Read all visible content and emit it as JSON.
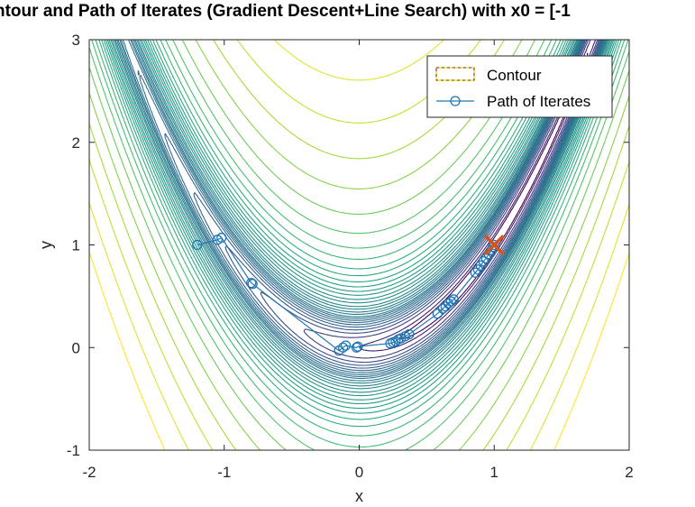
{
  "chart_data": {
    "type": "contour",
    "title": "ntour and Path of Iterates (Gradient Descent+Line Search) with x0 = [-1",
    "xlabel": "x",
    "ylabel": "y",
    "xlim": [
      -2,
      2
    ],
    "ylim": [
      -1,
      3
    ],
    "xticks": [
      "-2",
      "-1",
      "0",
      "1",
      "2"
    ],
    "yticks": [
      "-1",
      "0",
      "1",
      "2",
      "3"
    ],
    "function": "rosenbrock: (1-x)^2 + 100*(y-x^2)^2",
    "contour_levels": [
      0.5,
      1,
      2,
      3,
      4,
      5,
      6,
      7,
      8,
      9,
      10,
      11.5,
      13,
      15,
      17,
      20,
      23,
      27,
      31,
      36,
      42,
      50,
      60,
      75,
      95,
      125,
      170,
      240,
      340,
      480,
      680,
      950
    ],
    "colormap": [
      "#440154",
      "#46327e",
      "#365c8d",
      "#277f8e",
      "#1fa187",
      "#4ac16d",
      "#a0da39",
      "#fde725"
    ],
    "legend": {
      "position": "top-right",
      "entries": [
        {
          "label": "Contour",
          "color": "#e8e020"
        },
        {
          "label": "Path of Iterates",
          "color": "#1f77b4"
        }
      ]
    },
    "path": {
      "color": "#1f77b4",
      "x": [
        -1.2,
        -1.05,
        -1.02,
        -0.8,
        -0.79,
        -0.15,
        -0.12,
        -0.1,
        -0.02,
        -0.01,
        0.23,
        0.25,
        0.27,
        0.29,
        0.31,
        0.34,
        0.37,
        0.58,
        0.62,
        0.64,
        0.66,
        0.68,
        0.7,
        0.86,
        0.88,
        0.9,
        0.92,
        0.94,
        0.96,
        0.98,
        0.99,
        1.0
      ],
      "y": [
        1.0,
        1.05,
        1.07,
        0.63,
        0.62,
        -0.03,
        0.0,
        0.02,
        0.0,
        0.01,
        0.04,
        0.05,
        0.06,
        0.08,
        0.09,
        0.11,
        0.13,
        0.33,
        0.38,
        0.4,
        0.43,
        0.45,
        0.47,
        0.73,
        0.76,
        0.8,
        0.84,
        0.87,
        0.91,
        0.95,
        0.98,
        1.0
      ]
    },
    "optimum": {
      "x": 1,
      "y": 1,
      "marker": "x",
      "color": "#d95319"
    },
    "grid": false
  }
}
